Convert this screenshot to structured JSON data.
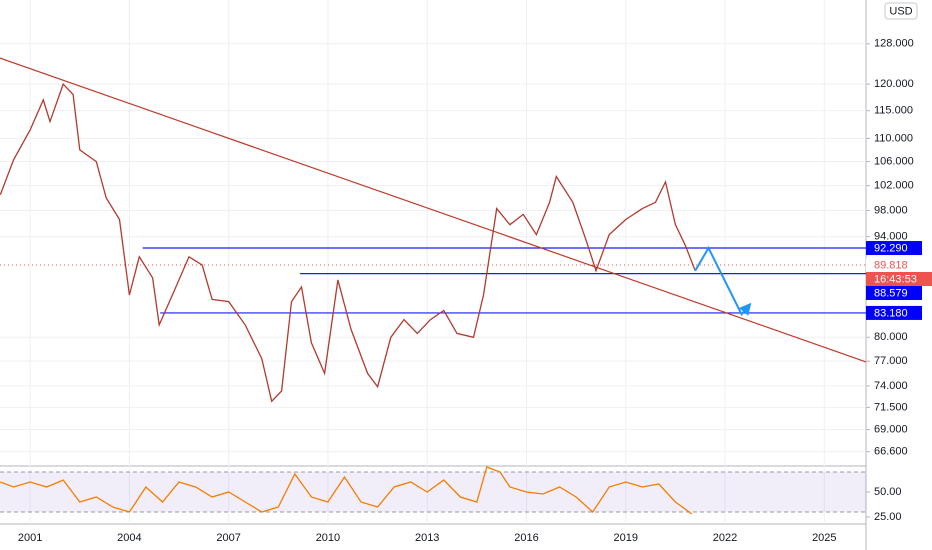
{
  "chart_data": [
    {
      "type": "line",
      "currency": "USD",
      "log_scale": true,
      "grid": true,
      "color": "#b23a2e",
      "x": [
        2000.1,
        2000.5,
        2001.0,
        2001.4,
        2001.6,
        2002.0,
        2002.3,
        2002.5,
        2003.0,
        2003.3,
        2003.7,
        2004.0,
        2004.3,
        2004.7,
        2004.9,
        2005.3,
        2005.8,
        2006.2,
        2006.5,
        2007.0,
        2007.5,
        2008.0,
        2008.3,
        2008.6,
        2008.9,
        2009.2,
        2009.5,
        2009.9,
        2010.3,
        2010.7,
        2011.2,
        2011.5,
        2011.9,
        2012.3,
        2012.7,
        2013.1,
        2013.5,
        2013.9,
        2014.4,
        2014.7,
        2015.1,
        2015.5,
        2015.9,
        2016.3,
        2016.7,
        2016.9,
        2017.4,
        2017.8,
        2018.1,
        2018.5,
        2019.0,
        2019.5,
        2019.9,
        2020.2,
        2020.5,
        2020.8,
        2021.1
      ],
      "values": [
        100.5,
        106.3,
        111.5,
        117,
        113,
        120,
        118,
        108,
        106,
        100,
        96.6,
        85.6,
        91,
        88,
        81.6,
        85.6,
        91,
        89.8,
        85,
        84.7,
        81.6,
        77.3,
        72.2,
        73.4,
        84.7,
        86.7,
        79.3,
        75.5,
        87.7,
        81,
        75.5,
        73.9,
        80,
        82.3,
        80.5,
        82.3,
        83.5,
        80.5,
        80,
        85.6,
        98.3,
        95.8,
        97.4,
        94.3,
        99.3,
        103.5,
        99.3,
        93.5,
        89,
        94.3,
        96.6,
        98.3,
        99.3,
        102.6,
        95.8,
        92.7,
        89
      ],
      "xlim": [
        2000.09,
        2026.26
      ],
      "xticks": [
        2001,
        2004,
        2007,
        2010,
        2013,
        2016,
        2019,
        2022,
        2025
      ],
      "ylim": [
        65.2,
        137.3
      ],
      "yticks": [
        {
          "value": 128,
          "label": "128.000"
        },
        {
          "value": 120,
          "label": "120.000"
        },
        {
          "value": 115,
          "label": "115.000"
        },
        {
          "value": 110,
          "label": "110.000"
        },
        {
          "value": 106,
          "label": "106.000"
        },
        {
          "value": 102,
          "label": "102.000"
        },
        {
          "value": 98,
          "label": "98.000"
        },
        {
          "value": 94,
          "label": "94.000"
        },
        {
          "value": 80,
          "label": "80.000"
        },
        {
          "value": 77,
          "label": "77.000"
        },
        {
          "value": 74,
          "label": "74.000"
        },
        {
          "value": 71.5,
          "label": "71.500"
        },
        {
          "value": 69,
          "label": "69.000"
        },
        {
          "value": 66.6,
          "label": "66.600"
        }
      ],
      "levels": [
        {
          "value": 92.29,
          "label": "92.290",
          "x_start": 2004.4
        },
        {
          "value": 88.579,
          "label": "88.579",
          "x_start": 2009.16
        },
        {
          "value": 83.18,
          "label": "83.180",
          "x_start": 2004.93
        }
      ],
      "current_price": {
        "value": 89.818,
        "label": "89.818",
        "countdown": "16:43:53"
      },
      "trendline": {
        "x": [
          2000.09,
          2026.26
        ],
        "values": [
          125.1,
          76.9
        ]
      },
      "projection": {
        "x": [
          2021.1,
          2021.5,
          2022.5,
          2022.75
        ],
        "values": [
          89,
          92.3,
          83,
          84.3
        ]
      }
    },
    {
      "type": "line",
      "color": "#f57c00",
      "x": [
        2000.1,
        2000.5,
        2001.0,
        2001.5,
        2002.0,
        2002.5,
        2003.0,
        2003.5,
        2004.0,
        2004.5,
        2005.0,
        2005.5,
        2006.0,
        2006.5,
        2007.0,
        2007.5,
        2008.0,
        2008.5,
        2009.0,
        2009.5,
        2010.0,
        2010.5,
        2011.0,
        2011.5,
        2012.0,
        2012.5,
        2013.0,
        2013.5,
        2014.0,
        2014.5,
        2014.8,
        2015.2,
        2015.5,
        2016.0,
        2016.5,
        2017.0,
        2017.5,
        2018.0,
        2018.5,
        2019.0,
        2019.5,
        2020.0,
        2020.5,
        2021.0
      ],
      "values": [
        60,
        55,
        60,
        55,
        62,
        40,
        45,
        35,
        30,
        55,
        40,
        60,
        55,
        45,
        50,
        40,
        30,
        35,
        68,
        45,
        40,
        65,
        40,
        35,
        55,
        60,
        50,
        62,
        45,
        40,
        75,
        70,
        55,
        50,
        48,
        55,
        45,
        30,
        55,
        60,
        55,
        58,
        40,
        28
      ],
      "ylim": [
        20,
        72
      ],
      "yticks": [
        {
          "value": 50,
          "label": "50.00"
        },
        {
          "value": 25,
          "label": "25.00"
        }
      ],
      "bands": [
        30,
        70
      ]
    }
  ]
}
